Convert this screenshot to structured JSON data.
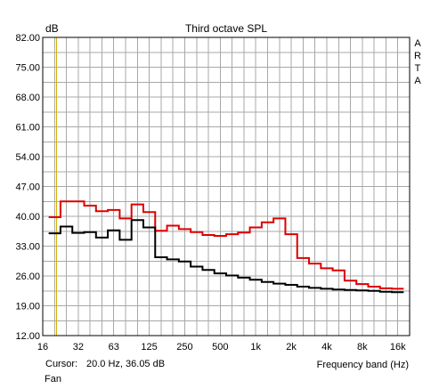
{
  "chart_data": {
    "type": "line",
    "title": "Third octave SPL",
    "ylabel": "dB",
    "xlabel": "Frequency band (Hz)",
    "watermark": "ARTA",
    "ylim": [
      12.0,
      82.0
    ],
    "y_ticks": [
      "82.00",
      "75.00",
      "68.00",
      "61.00",
      "54.00",
      "47.00",
      "40.00",
      "33.00",
      "26.00",
      "19.00",
      "12.00"
    ],
    "y_tick_values": [
      82,
      75,
      68,
      61,
      54,
      47,
      40,
      33,
      26,
      19,
      12
    ],
    "x_tick_labels": [
      "16",
      "32",
      "63",
      "125",
      "250",
      "500",
      "1k",
      "2k",
      "4k",
      "8k",
      "16k"
    ],
    "x_tick_bands": [
      0,
      3,
      6,
      9,
      12,
      15,
      18,
      21,
      24,
      27,
      30
    ],
    "bands": [
      "20",
      "25",
      "31.5",
      "40",
      "50",
      "63",
      "80",
      "100",
      "125",
      "160",
      "200",
      "250",
      "315",
      "400",
      "500",
      "630",
      "800",
      "1k",
      "1.25k",
      "1.6k",
      "2k",
      "2.5k",
      "3.15k",
      "4k",
      "5k",
      "6.3k",
      "8k",
      "10k",
      "12.5k",
      "16k"
    ],
    "grid": true,
    "cursor": {
      "band_position": 1,
      "color": "#d4b000"
    },
    "series": [
      {
        "color": "#dd0000",
        "values": [
          39.8,
          43.5,
          43.5,
          42.5,
          41.2,
          41.5,
          39.5,
          42.8,
          41.0,
          36.6,
          37.8,
          37.0,
          36.3,
          35.6,
          35.4,
          35.8,
          36.2,
          37.4,
          38.6,
          39.5,
          35.8,
          30.2,
          28.9,
          27.8,
          27.3,
          24.9,
          24.1,
          23.5,
          23.1,
          23.0
        ]
      },
      {
        "color": "#000000",
        "values": [
          36.0,
          37.6,
          36.1,
          36.3,
          35.0,
          36.7,
          34.5,
          39.1,
          37.4,
          30.4,
          29.9,
          29.4,
          28.2,
          27.4,
          26.6,
          26.1,
          25.6,
          25.1,
          24.6,
          24.2,
          23.9,
          23.5,
          23.2,
          23.0,
          22.8,
          22.7,
          22.6,
          22.5,
          22.3,
          22.2
        ]
      }
    ]
  },
  "footer": {
    "cursor_label": "Cursor:",
    "cursor_value": "20.0 Hz, 36.05 dB",
    "channel": "Fan"
  }
}
